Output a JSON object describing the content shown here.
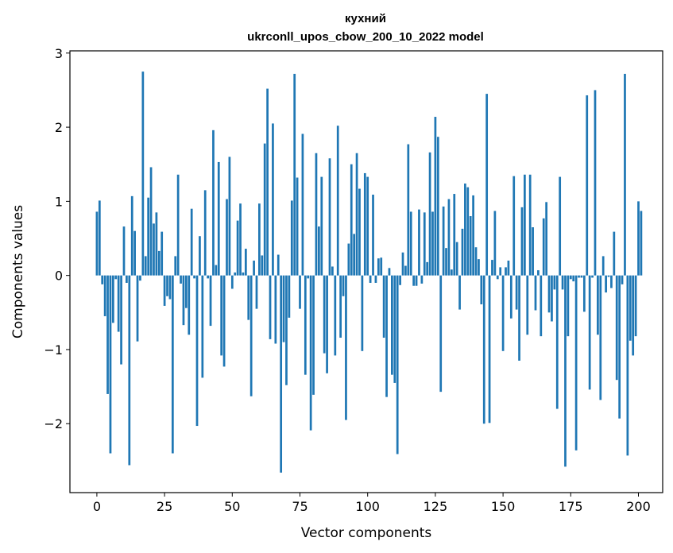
{
  "chart_data": {
    "type": "bar",
    "title_lines": [
      "кухний",
      "ukrconll_upos_cbow_200_10_2022 model"
    ],
    "xlabel": "Vector components",
    "ylabel": "Components values",
    "xlim": [
      -9.95,
      208.95
    ],
    "ylim": [
      -2.93,
      3.03
    ],
    "x_ticks": [
      {
        "value": 0,
        "label": "0"
      },
      {
        "value": 25,
        "label": "25"
      },
      {
        "value": 50,
        "label": "50"
      },
      {
        "value": 75,
        "label": "75"
      },
      {
        "value": 100,
        "label": "100"
      },
      {
        "value": 125,
        "label": "125"
      },
      {
        "value": 150,
        "label": "150"
      },
      {
        "value": 175,
        "label": "175"
      },
      {
        "value": 200,
        "label": "200"
      }
    ],
    "y_ticks": [
      {
        "value": -2,
        "label": "−2"
      },
      {
        "value": -1,
        "label": "−1"
      },
      {
        "value": 0,
        "label": "0"
      },
      {
        "value": 1,
        "label": "1"
      },
      {
        "value": 2,
        "label": "2"
      },
      {
        "value": 3,
        "label": "3"
      }
    ],
    "grid": false,
    "bar_color": "#1f77b4",
    "values": [
      0.86,
      1.01,
      -0.12,
      -0.55,
      -1.6,
      -2.4,
      -0.64,
      -0.05,
      -0.76,
      -1.2,
      0.66,
      -0.1,
      -2.56,
      1.07,
      0.6,
      -0.89,
      -0.07,
      2.75,
      0.26,
      1.05,
      1.46,
      0.7,
      0.85,
      0.33,
      0.59,
      -0.41,
      -0.28,
      -0.32,
      -2.4,
      0.26,
      1.36,
      -0.11,
      -0.67,
      -0.44,
      -0.8,
      0.9,
      -0.04,
      -2.03,
      0.53,
      -1.38,
      1.15,
      -0.04,
      -0.68,
      1.96,
      0.14,
      1.53,
      -1.08,
      -1.23,
      1.03,
      1.6,
      -0.18,
      0.04,
      0.74,
      0.97,
      0.04,
      0.36,
      -0.6,
      -1.63,
      0.2,
      -0.45,
      0.97,
      0.27,
      1.78,
      2.52,
      -0.86,
      2.05,
      -0.92,
      0.28,
      -2.66,
      -0.9,
      -1.48,
      -0.57,
      1.01,
      2.72,
      1.32,
      -0.45,
      1.91,
      -1.34,
      -0.04,
      -2.09,
      -1.61,
      1.65,
      0.66,
      1.33,
      -1.05,
      -1.32,
      1.58,
      0.12,
      -1.08,
      2.02,
      -0.84,
      -0.28,
      -1.95,
      0.43,
      1.5,
      0.56,
      1.65,
      1.17,
      -1.02,
      1.38,
      1.33,
      -0.1,
      1.09,
      -0.1,
      0.23,
      0.24,
      -0.84,
      -1.64,
      0.1,
      -1.34,
      -1.45,
      -2.41,
      -0.13,
      0.31,
      0.13,
      1.77,
      0.86,
      -0.14,
      -0.14,
      0.89,
      -0.11,
      0.85,
      0.18,
      1.66,
      0.86,
      2.14,
      1.87,
      -1.57,
      0.93,
      0.37,
      1.03,
      0.08,
      1.1,
      0.45,
      -0.46,
      0.63,
      1.24,
      1.19,
      0.8,
      1.08,
      0.38,
      0.22,
      -0.39,
      -2.0,
      2.45,
      -1.99,
      0.21,
      0.87,
      -0.05,
      0.11,
      -1.02,
      0.11,
      0.2,
      -0.58,
      1.34,
      -0.46,
      -1.15,
      0.92,
      1.36,
      -0.8,
      1.36,
      0.65,
      -0.47,
      0.07,
      -0.82,
      0.77,
      0.99,
      -0.5,
      -0.62,
      -0.19,
      -1.8,
      1.33,
      -0.19,
      -2.58,
      -0.82,
      -0.05,
      -0.08,
      -2.36,
      -0.03,
      -0.03,
      -0.49,
      2.43,
      -1.54,
      -0.03,
      2.5,
      -0.8,
      -1.68,
      0.26,
      -0.23,
      -0.02,
      -0.17,
      0.59,
      -1.41,
      -1.93,
      -0.12,
      2.72,
      -2.43,
      -0.88,
      -1.08,
      -0.82,
      1.0,
      0.87
    ]
  }
}
